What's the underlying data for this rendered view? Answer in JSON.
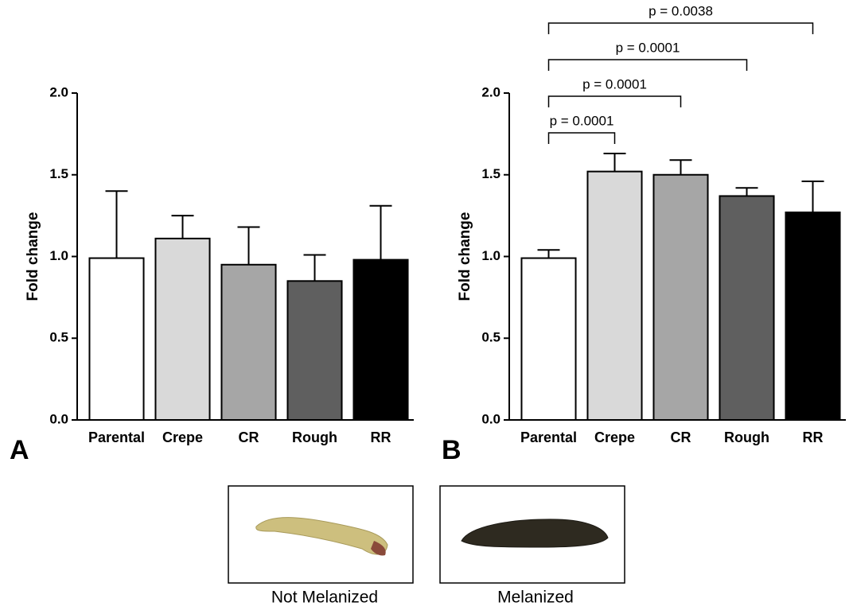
{
  "chart_data": [
    {
      "type": "bar",
      "panel_label": "A",
      "ylabel": "Fold change",
      "categories": [
        "Parental",
        "Crepe",
        "CR",
        "Rough",
        "RR"
      ],
      "values": [
        0.99,
        1.11,
        0.95,
        0.85,
        0.98
      ],
      "errors": [
        0.41,
        0.14,
        0.23,
        0.16,
        0.33
      ],
      "colors": [
        "#ffffff",
        "#d9d9d9",
        "#a6a6a6",
        "#5f5f5f",
        "#000000"
      ],
      "ylim": [
        0,
        2
      ],
      "yticks": [
        {
          "value": 0,
          "label": "0.0"
        },
        0.5,
        {
          "value": 1,
          "label": "1.0"
        },
        1.5,
        {
          "value": 2,
          "label": "2.0"
        }
      ],
      "annotations": []
    },
    {
      "type": "bar",
      "panel_label": "B",
      "ylabel": "Fold change",
      "categories": [
        "Parental",
        "Crepe",
        "CR",
        "Rough",
        "RR"
      ],
      "values": [
        0.99,
        1.52,
        1.5,
        1.37,
        1.27
      ],
      "errors": [
        0.05,
        0.11,
        0.09,
        0.05,
        0.19
      ],
      "colors": [
        "#ffffff",
        "#d9d9d9",
        "#a6a6a6",
        "#5f5f5f",
        "#000000"
      ],
      "ylim": [
        0,
        2
      ],
      "yticks": [
        {
          "value": 0,
          "label": "0.0"
        },
        0.5,
        {
          "value": 1,
          "label": "1.0"
        },
        1.5,
        {
          "value": 2,
          "label": "2.0"
        }
      ],
      "annotations": [
        "p = 0.0001",
        "p = 0.0001",
        "p = 0.0001",
        "p = 0.0038"
      ]
    }
  ],
  "images": [
    {
      "caption": "Not Melanized"
    },
    {
      "caption": "Melanized"
    }
  ]
}
